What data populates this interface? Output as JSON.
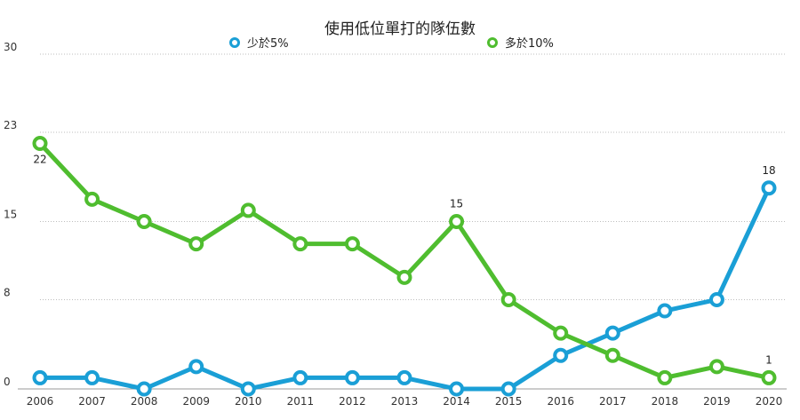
{
  "chart_data": {
    "type": "line",
    "title": "使用低位單打的隊伍數",
    "categories": [
      "2006",
      "2007",
      "2008",
      "2009",
      "2010",
      "2011",
      "2012",
      "2013",
      "2014",
      "2015",
      "2016",
      "2017",
      "2018",
      "2019",
      "2020"
    ],
    "series": [
      {
        "name": "少於5%",
        "color": "#1a9fd6",
        "values": [
          1,
          1,
          0,
          2,
          0,
          1,
          1,
          1,
          0,
          0,
          3,
          5,
          7,
          8,
          18
        ]
      },
      {
        "name": "多於10%",
        "color": "#4fbd2f",
        "values": [
          22,
          17,
          15,
          13,
          16,
          13,
          13,
          10,
          15,
          8,
          5,
          3,
          1,
          2,
          1
        ]
      }
    ],
    "data_labels": [
      {
        "series": 1,
        "index": 0,
        "text": "22"
      },
      {
        "series": 1,
        "index": 8,
        "text": "15"
      },
      {
        "series": 0,
        "index": 14,
        "text": "18"
      },
      {
        "series": 1,
        "index": 14,
        "text": "1"
      }
    ],
    "yticks": [
      "0",
      "8",
      "15",
      "23",
      "30"
    ],
    "ylim": [
      0,
      30
    ],
    "grid": true,
    "legend_position": "top"
  }
}
